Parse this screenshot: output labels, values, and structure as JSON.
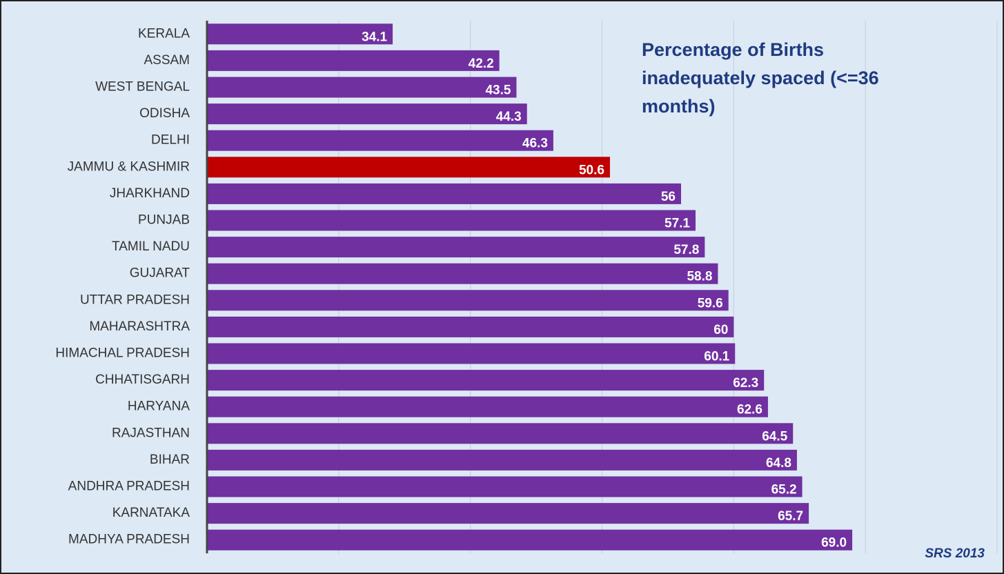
{
  "chart_data": {
    "type": "bar",
    "orientation": "horizontal",
    "title": "Percentage of Births inadequately spaced (<=36 months)",
    "source": "SRS 2013",
    "categories": [
      "KERALA",
      "ASSAM",
      "WEST BENGAL",
      "ODISHA",
      "DELHI",
      "JAMMU & KASHMIR",
      "JHARKHAND",
      "PUNJAB",
      "TAMIL NADU",
      "GUJARAT",
      "UTTAR PRADESH",
      "MAHARASHTRA",
      "HIMACHAL PRADESH",
      "CHHATISGARH",
      "HARYANA",
      "RAJASTHAN",
      "BIHAR",
      "ANDHRA PRADESH",
      "KARNATAKA",
      "MADHYA PRADESH"
    ],
    "values": [
      34.1,
      42.2,
      43.5,
      44.3,
      46.3,
      50.6,
      56,
      57.1,
      57.8,
      58.8,
      59.6,
      60,
      60.1,
      62.3,
      62.6,
      64.5,
      64.8,
      65.2,
      65.7,
      69
    ],
    "value_labels": [
      "34.1",
      "42.2",
      "43.5",
      "44.3",
      "46.3",
      "50.6",
      "56",
      "57.1",
      "57.8",
      "58.8",
      "59.6",
      "60",
      "60.1",
      "62.3",
      "62.6",
      "64.5",
      "64.8",
      "65.2",
      "65.7",
      "69.0"
    ],
    "colors": [
      "#7030a0",
      "#7030a0",
      "#7030a0",
      "#7030a0",
      "#7030a0",
      "#c00000",
      "#7030a0",
      "#7030a0",
      "#7030a0",
      "#7030a0",
      "#7030a0",
      "#7030a0",
      "#7030a0",
      "#7030a0",
      "#7030a0",
      "#7030a0",
      "#7030a0",
      "#7030a0",
      "#7030a0",
      "#7030a0"
    ],
    "xlim": [
      20,
      80
    ],
    "xticks": [
      20,
      30,
      40,
      50,
      60,
      70,
      80
    ],
    "grid": true
  }
}
